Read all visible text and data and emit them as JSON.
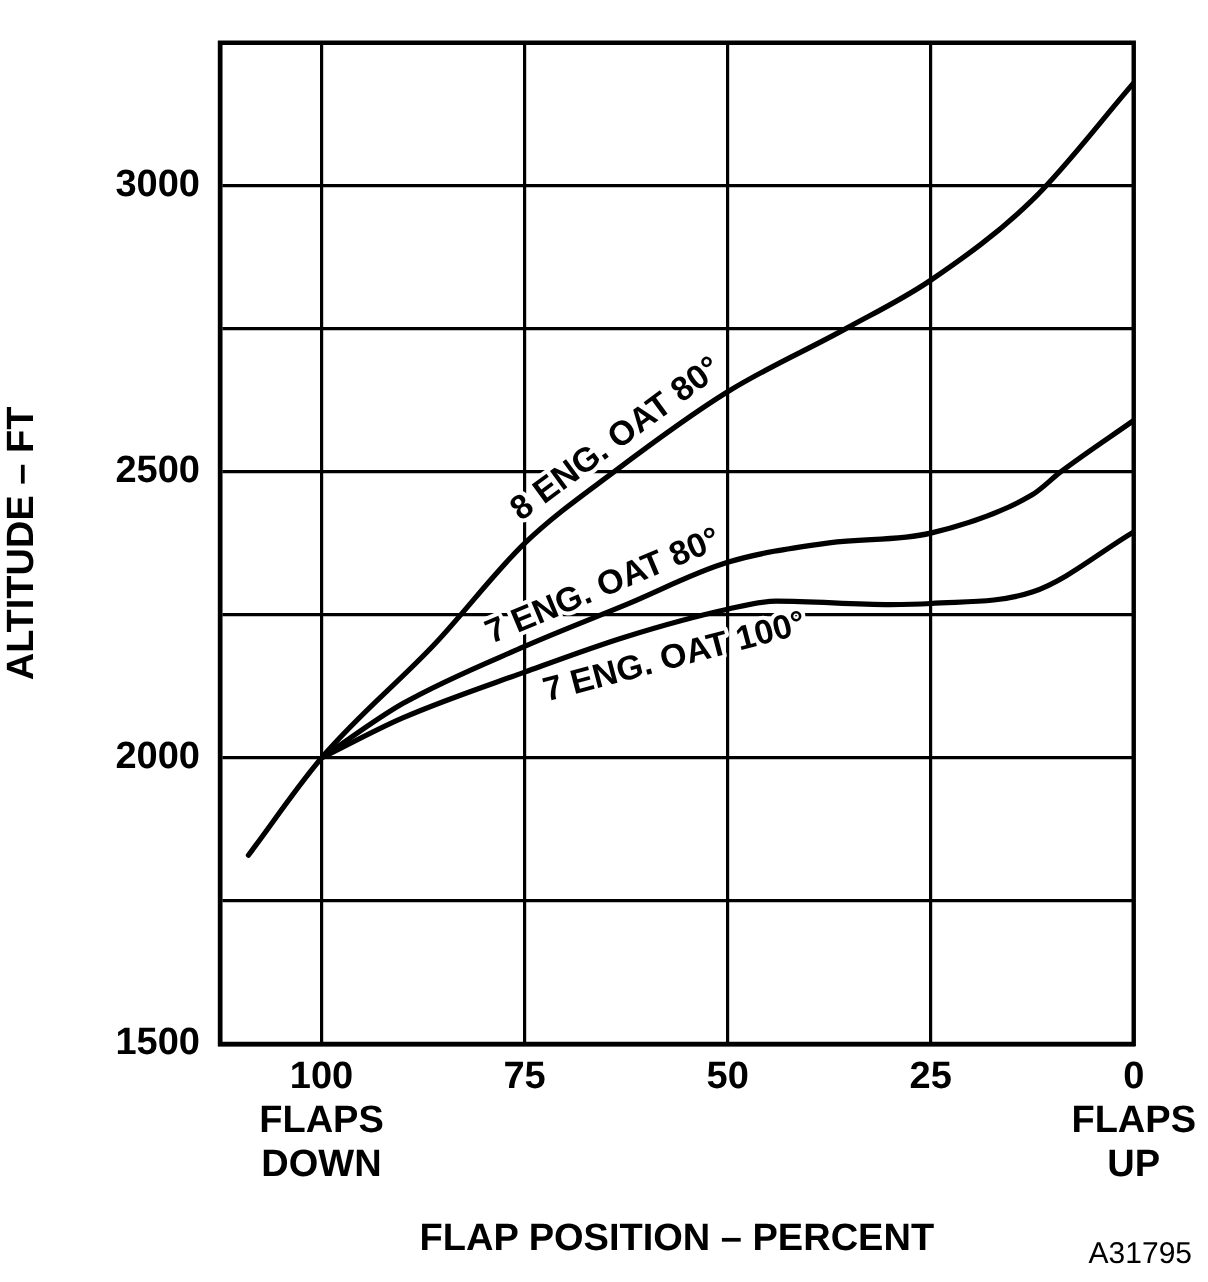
{
  "chart_data": {
    "type": "line",
    "xlabel": "FLAP POSITION – PERCENT",
    "ylabel": "ALTITUDE – FT",
    "xlim": [
      112.5,
      0
    ],
    "xticks": [
      {
        "value": 100,
        "label": "100\nFLAPS\nDOWN"
      },
      75,
      50,
      25,
      {
        "value": 0,
        "label": "0\nFLAPS\nUP"
      }
    ],
    "ylim": [
      1500,
      3250
    ],
    "yticks": [
      1500,
      {
        "value": 1750,
        "label": null
      },
      2000,
      {
        "value": 2250,
        "label": null
      },
      2500,
      {
        "value": 2750,
        "label": null
      },
      3000
    ],
    "grid": true,
    "marker": "none",
    "line_style": "solid",
    "legend": false,
    "series": [
      {
        "name": "8 ENG. OAT 80°",
        "color": "#000000",
        "x": [
          109,
          100,
          86,
          75,
          64,
          50,
          35.5,
          25,
          12.5,
          0
        ],
        "values": [
          1830,
          2000,
          2200,
          2375,
          2500,
          2640,
          2750,
          2835,
          2975,
          3180
        ]
      },
      {
        "name": "7 ENG. OAT 80°",
        "color": "#000000",
        "x": [
          100,
          90,
          75,
          62.5,
          50,
          37.5,
          25,
          12.5,
          9,
          0
        ],
        "values": [
          2000,
          2095,
          2195,
          2268,
          2342,
          2376,
          2393,
          2460,
          2500,
          2590
        ]
      },
      {
        "name": "7 ENG. OAT 100°",
        "color": "#000000",
        "x": [
          100,
          90,
          75,
          62.5,
          50,
          44,
          30,
          25,
          12.5,
          0
        ],
        "values": [
          2000,
          2070,
          2150,
          2212,
          2260,
          2274,
          2268,
          2270,
          2290,
          2395
        ]
      }
    ],
    "annotations": [
      "A31795"
    ]
  }
}
